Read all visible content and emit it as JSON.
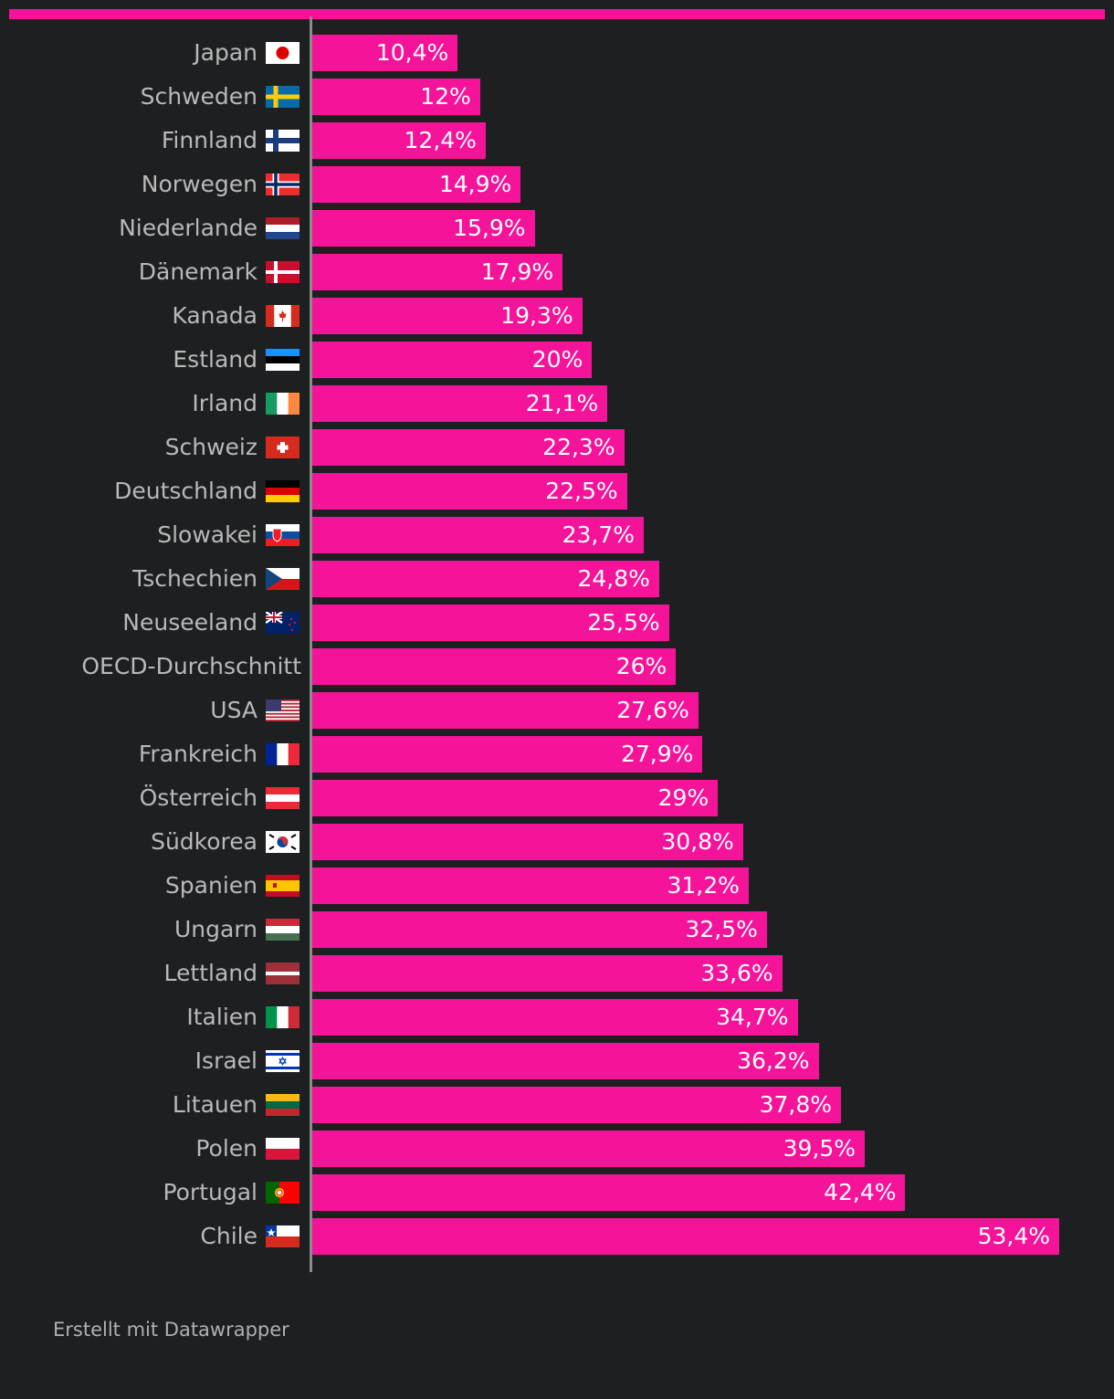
{
  "chart_data": {
    "type": "bar",
    "orientation": "horizontal",
    "bar_color": "#f5139a",
    "background": "#1e1f21",
    "xlim": [
      0,
      53.4
    ],
    "grid": false,
    "categories": [
      "Japan",
      "Schweden",
      "Finnland",
      "Norwegen",
      "Niederlande",
      "Dänemark",
      "Kanada",
      "Estland",
      "Irland",
      "Schweiz",
      "Deutschland",
      "Slowakei",
      "Tschechien",
      "Neuseeland",
      "OECD-Durchschnitt",
      "USA",
      "Frankreich",
      "Österreich",
      "Südkorea",
      "Spanien",
      "Ungarn",
      "Lettland",
      "Italien",
      "Israel",
      "Litauen",
      "Polen",
      "Portugal",
      "Chile"
    ],
    "values": [
      10.4,
      12,
      12.4,
      14.9,
      15.9,
      17.9,
      19.3,
      20,
      21.1,
      22.3,
      22.5,
      23.7,
      24.8,
      25.5,
      26,
      27.6,
      27.9,
      29,
      30.8,
      31.2,
      32.5,
      33.6,
      34.7,
      36.2,
      37.8,
      39.5,
      42.4,
      53.4
    ],
    "labels": [
      "10,4%",
      "12%",
      "12,4%",
      "14,9%",
      "15,9%",
      "17,9%",
      "19,3%",
      "20%",
      "21,1%",
      "22,3%",
      "22,5%",
      "23,7%",
      "24,8%",
      "25,5%",
      "26%",
      "27,6%",
      "27,9%",
      "29%",
      "30,8%",
      "31,2%",
      "32,5%",
      "33,6%",
      "34,7%",
      "36,2%",
      "37,8%",
      "39,5%",
      "42,4%",
      "53,4%"
    ],
    "flags": [
      "flag-japan",
      "flag-sweden",
      "flag-finland",
      "flag-norway",
      "flag-netherlands",
      "flag-denmark",
      "flag-canada",
      "flag-estonia",
      "flag-ireland",
      "flag-switzerland",
      "flag-germany",
      "flag-slovakia",
      "flag-czechia",
      "flag-new-zealand",
      "",
      "flag-usa",
      "flag-france",
      "flag-austria",
      "flag-south-korea",
      "flag-spain",
      "flag-hungary",
      "flag-latvia",
      "flag-italy",
      "flag-israel",
      "flag-lithuania",
      "flag-poland",
      "flag-portugal",
      "flag-chile"
    ]
  },
  "footer": "Erstellt mit Datawrapper"
}
